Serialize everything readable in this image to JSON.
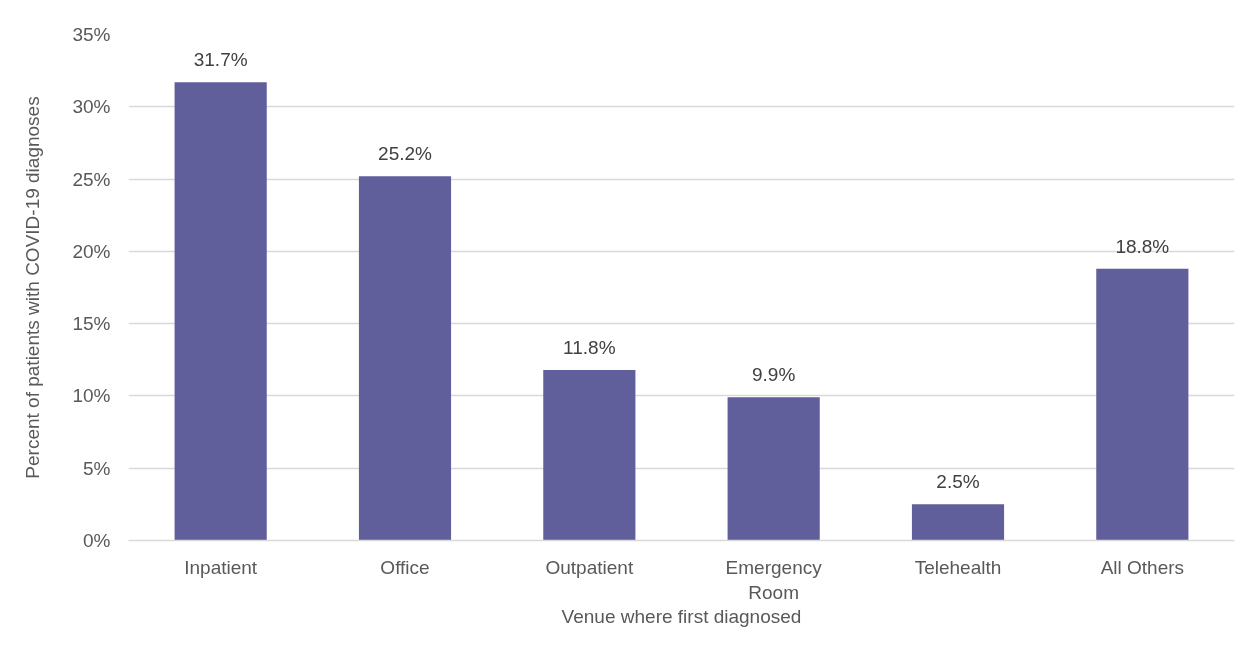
{
  "chart_data": {
    "type": "bar",
    "xlabel": "Venue where first diagnosed",
    "ylabel": "Percent of patients with COVID-19 diagnoses",
    "categories": [
      "Inpatient",
      "Office",
      "Outpatient",
      "Emergency Room",
      "Telehealth",
      "All Others"
    ],
    "values": [
      31.7,
      25.2,
      11.8,
      9.9,
      2.5,
      18.8
    ],
    "value_labels": [
      "31.7%",
      "25.2%",
      "11.8%",
      "9.9%",
      "2.5%",
      "18.8%"
    ],
    "color": "#605e9b",
    "ylim": [
      0,
      35
    ],
    "yticks": [
      {
        "value": 0,
        "label": "0%"
      },
      {
        "value": 5,
        "label": "5%"
      },
      {
        "value": 10,
        "label": "10%"
      },
      {
        "value": 15,
        "label": "15%"
      },
      {
        "value": 20,
        "label": "20%"
      },
      {
        "value": 25,
        "label": "25%"
      },
      {
        "value": 30,
        "label": "30%"
      },
      {
        "value": 35,
        "label": "35%"
      }
    ],
    "grid": "y"
  }
}
